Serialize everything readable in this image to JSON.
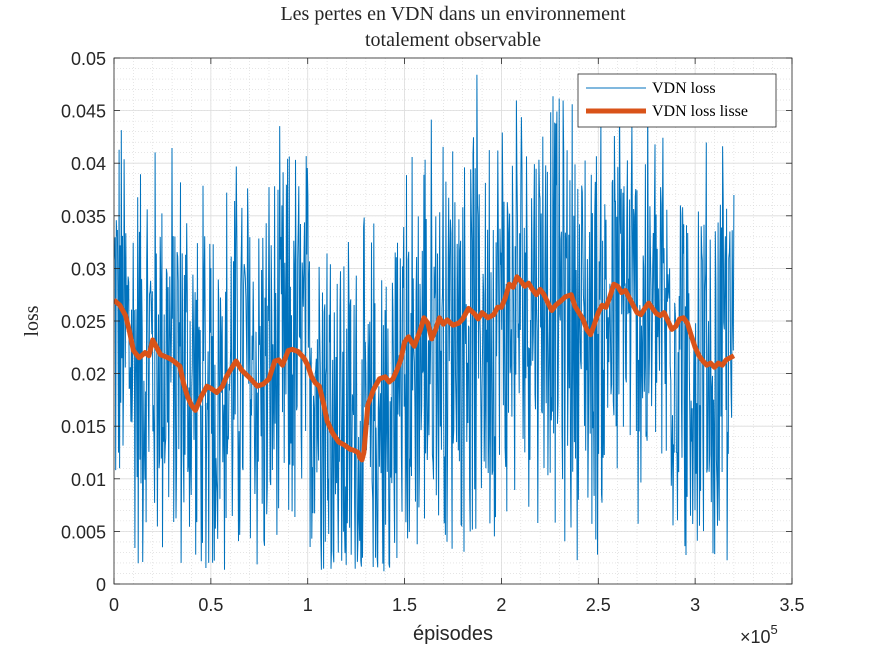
{
  "chart_data": {
    "type": "line",
    "title_line1": "Les pertes en VDN dans un environnement",
    "title_line2": "totalement observable",
    "xlabel": "épisodes",
    "ylabel": "loss",
    "x_exponent_base": "×10",
    "x_exponent_power": "5",
    "xlim": [
      0,
      350000
    ],
    "ylim": [
      0,
      0.05
    ],
    "x_ticks": [
      0,
      50000,
      100000,
      150000,
      200000,
      250000,
      300000,
      350000
    ],
    "x_tick_labels": [
      "0",
      "0.5",
      "1",
      "1.5",
      "2",
      "2.5",
      "3",
      "3.5"
    ],
    "y_ticks": [
      0,
      0.005,
      0.01,
      0.015,
      0.02,
      0.025,
      0.03,
      0.035,
      0.04,
      0.045,
      0.05
    ],
    "y_tick_labels": [
      "0",
      "0.005",
      "0.01",
      "0.015",
      "0.02",
      "0.025",
      "0.03",
      "0.035",
      "0.04",
      "0.045",
      "0.05"
    ],
    "grid": "major and minor",
    "legend_position": "top-right",
    "colors": {
      "raw": "#0072BD",
      "smooth": "#D95319"
    },
    "series": [
      {
        "name": "VDN loss",
        "style": "thin noisy line",
        "x_range": [
          0,
          320000
        ],
        "approx_mean_values": [
          0.026,
          0.021,
          0.022,
          0.021,
          0.017,
          0.019,
          0.021,
          0.019,
          0.022,
          0.021,
          0.015,
          0.013,
          0.012,
          0.019,
          0.022,
          0.024,
          0.025,
          0.025,
          0.026,
          0.029,
          0.027,
          0.025,
          0.024,
          0.027,
          0.025,
          0.025,
          0.022,
          0.021,
          0.021
        ],
        "approx_noise_amplitude": 0.02
      },
      {
        "name": "VDN loss lisse",
        "style": "thick smoothed line",
        "x": [
          0,
          3000,
          6000,
          8000,
          10000,
          13000,
          16000,
          18000,
          20000,
          24000,
          28000,
          30000,
          32000,
          34000,
          36000,
          38000,
          40000,
          42000,
          45000,
          48000,
          50000,
          53000,
          56000,
          58000,
          60000,
          63000,
          66000,
          70000,
          74000,
          77000,
          80000,
          83000,
          85000,
          87000,
          90000,
          92000,
          95000,
          98000,
          100000,
          102000,
          104000,
          106000,
          108000,
          110000,
          113000,
          116000,
          119000,
          122000,
          124000,
          126000,
          127000,
          128000,
          129000,
          131000,
          134000,
          137000,
          140000,
          142000,
          144000,
          146000,
          148000,
          150000,
          152000,
          155000,
          158000,
          160000,
          162000,
          164000,
          166000,
          168000,
          170000,
          172000,
          175000,
          178000,
          180000,
          183000,
          186000,
          188000,
          190000,
          193000,
          196000,
          198000,
          200000,
          202000,
          204000,
          206000,
          208000,
          210000,
          212000,
          214000,
          216000,
          218000,
          220000,
          222000,
          224000,
          226000,
          228000,
          230000,
          233000,
          236000,
          238000,
          240000,
          242000,
          244000,
          246000,
          248000,
          250000,
          252000,
          254000,
          256000,
          258000,
          260000,
          262000,
          264000,
          266000,
          268000,
          270000,
          272000,
          274000,
          276000,
          278000,
          280000,
          282000,
          284000,
          286000,
          288000,
          290000,
          292000,
          294000,
          296000,
          298000,
          300000,
          302000,
          304000,
          306000,
          308000,
          310000,
          312000,
          314000,
          316000,
          318000,
          320000
        ],
        "values": [
          0.027,
          0.0265,
          0.0255,
          0.024,
          0.0222,
          0.0215,
          0.022,
          0.0217,
          0.0232,
          0.0218,
          0.0215,
          0.0213,
          0.021,
          0.0207,
          0.019,
          0.0178,
          0.017,
          0.0165,
          0.0178,
          0.0188,
          0.0186,
          0.0182,
          0.0188,
          0.0197,
          0.0203,
          0.0212,
          0.0203,
          0.0196,
          0.0188,
          0.019,
          0.0195,
          0.0212,
          0.0213,
          0.0208,
          0.0222,
          0.0223,
          0.0221,
          0.0215,
          0.0208,
          0.0197,
          0.0191,
          0.0188,
          0.0173,
          0.0155,
          0.0143,
          0.0135,
          0.0132,
          0.0128,
          0.0127,
          0.0125,
          0.012,
          0.0118,
          0.0125,
          0.017,
          0.0185,
          0.0195,
          0.0197,
          0.0192,
          0.0195,
          0.0203,
          0.0213,
          0.023,
          0.0235,
          0.0226,
          0.0241,
          0.0253,
          0.0248,
          0.0233,
          0.0242,
          0.0253,
          0.0247,
          0.0251,
          0.0246,
          0.0248,
          0.0252,
          0.0262,
          0.0257,
          0.0252,
          0.0258,
          0.0253,
          0.0256,
          0.0263,
          0.0263,
          0.0272,
          0.0285,
          0.0282,
          0.0292,
          0.0288,
          0.0283,
          0.0286,
          0.028,
          0.0275,
          0.028,
          0.0275,
          0.0267,
          0.026,
          0.0265,
          0.0268,
          0.0273,
          0.0275,
          0.0264,
          0.0258,
          0.0252,
          0.0242,
          0.0237,
          0.0247,
          0.0258,
          0.0265,
          0.0263,
          0.0273,
          0.0285,
          0.0283,
          0.0277,
          0.0279,
          0.0272,
          0.0265,
          0.0258,
          0.0256,
          0.0262,
          0.0267,
          0.0262,
          0.0257,
          0.0255,
          0.0258,
          0.025,
          0.0242,
          0.0245,
          0.0252,
          0.0253,
          0.0248,
          0.0236,
          0.0225,
          0.0217,
          0.0212,
          0.0208,
          0.021,
          0.0206,
          0.021,
          0.0208,
          0.0213,
          0.0215,
          0.0217
        ]
      }
    ]
  }
}
